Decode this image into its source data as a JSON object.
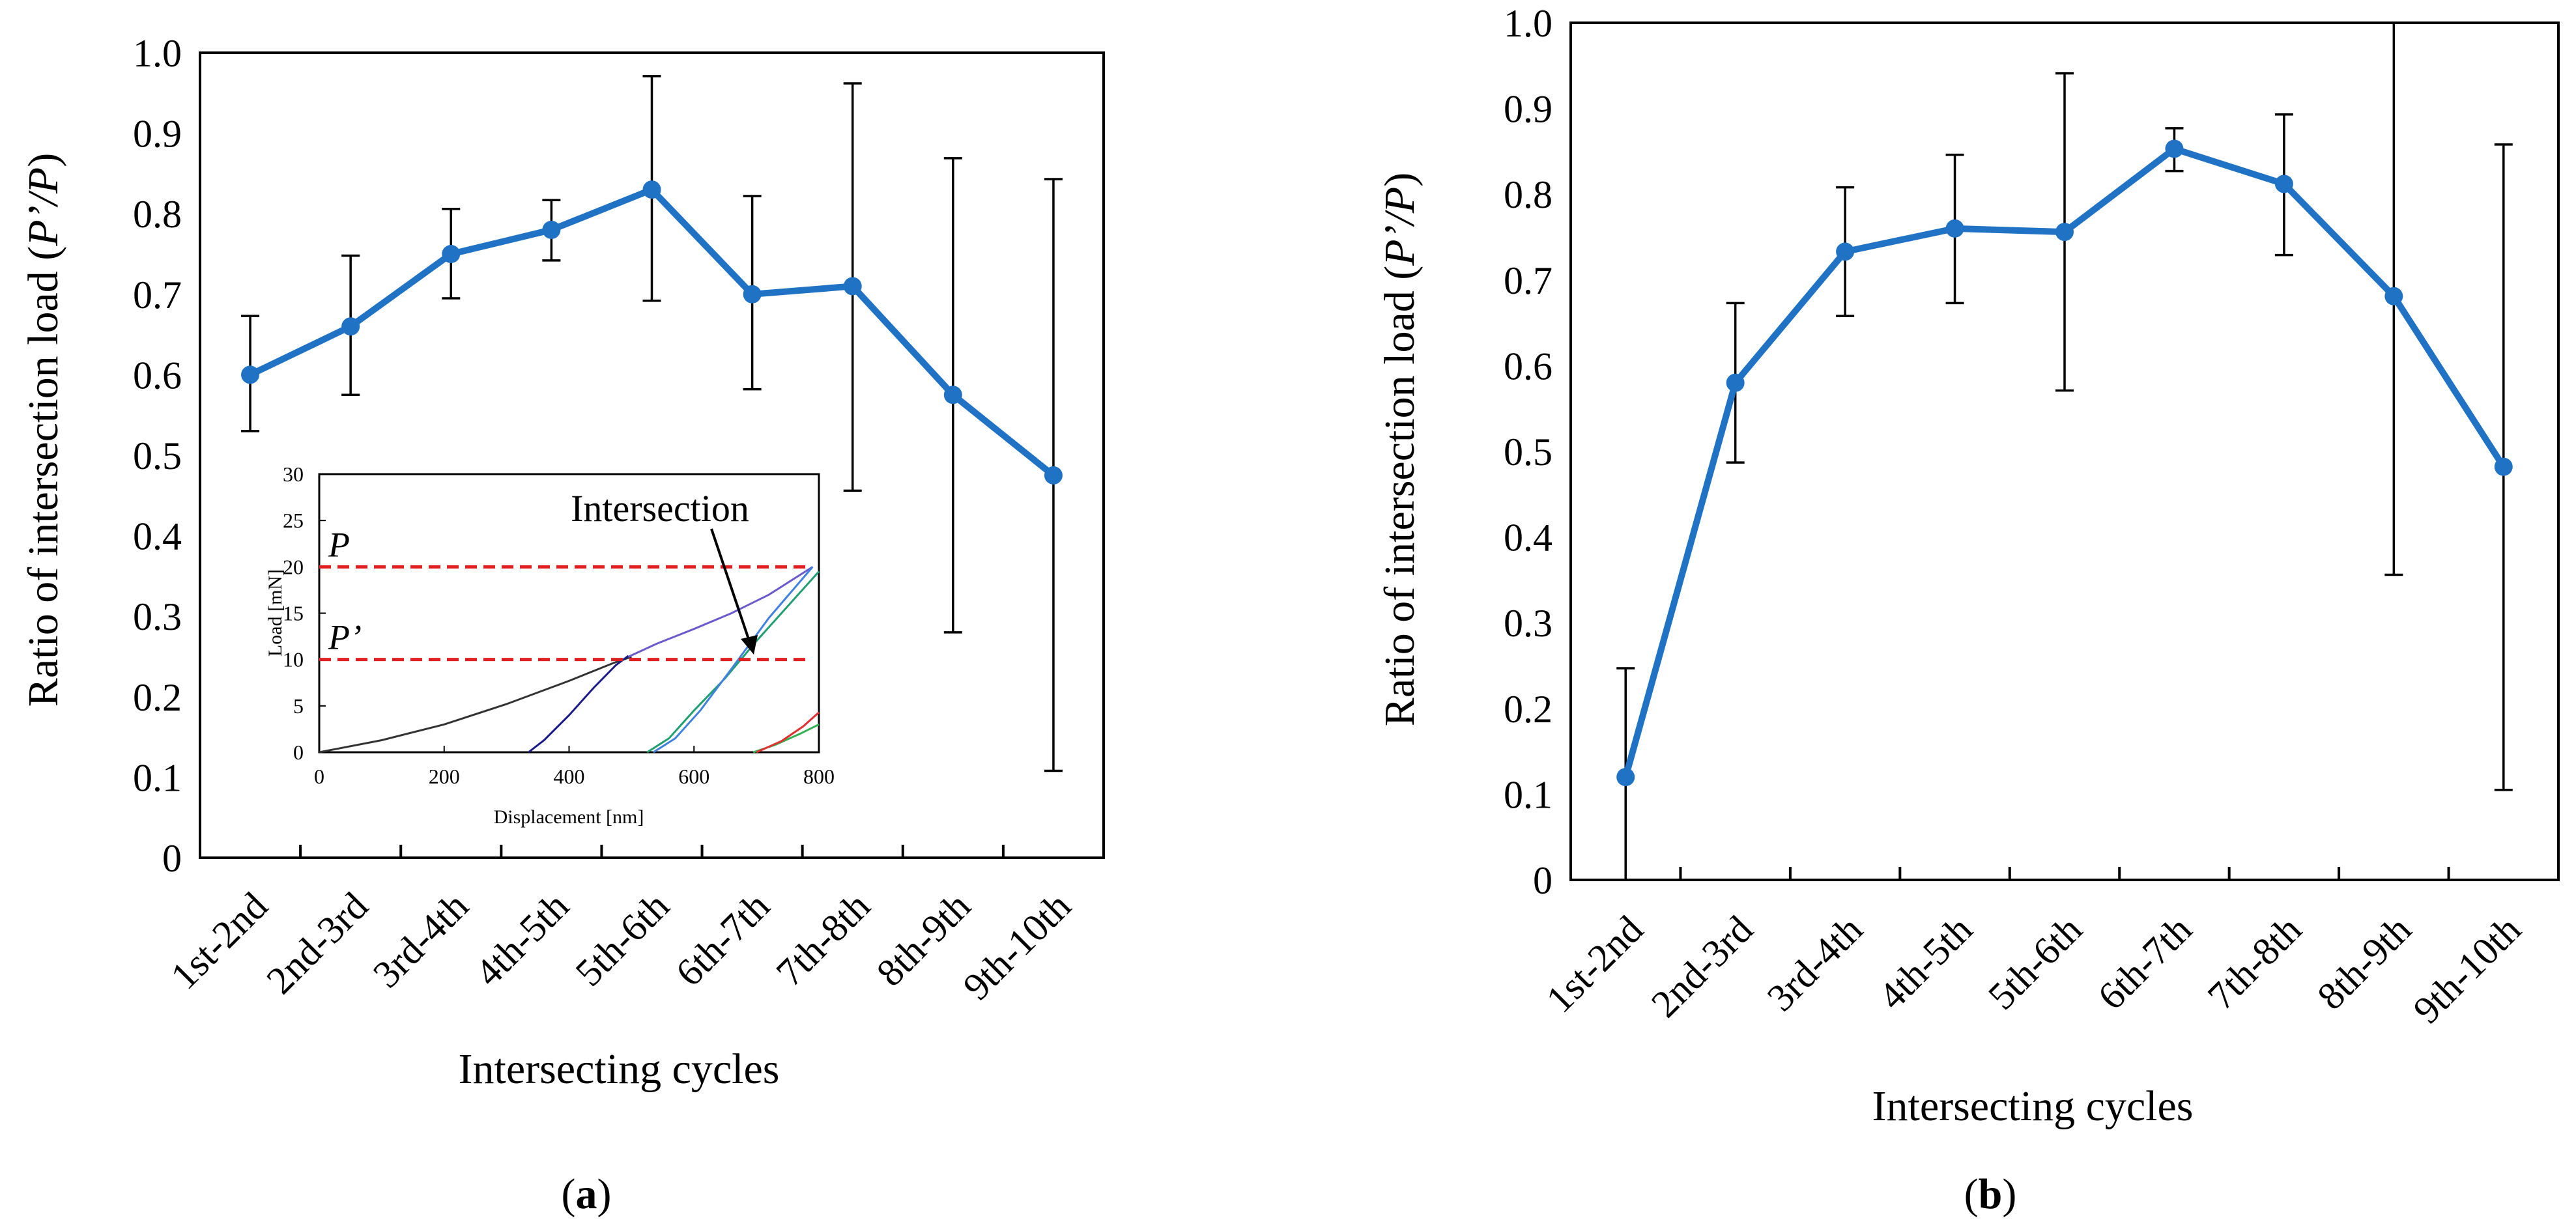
{
  "chart_data": [
    {
      "id": "a",
      "type": "line",
      "panel_label": {
        "open": "(",
        "letter": "a",
        "close": ")"
      },
      "categories": [
        "1st-2nd",
        "2nd-3rd",
        "3rd-4th",
        "4th-5th",
        "5th-6th",
        "6th-7th",
        "7th-8th",
        "8th-9th",
        "9th-10th"
      ],
      "values": [
        0.6,
        0.66,
        0.75,
        0.78,
        0.83,
        0.7,
        0.71,
        0.575,
        0.475
      ],
      "error_low": [
        0.53,
        0.575,
        0.695,
        0.742,
        0.692,
        0.582,
        0.456,
        0.28,
        0.108
      ],
      "error_high": [
        0.673,
        0.748,
        0.806,
        0.817,
        0.971,
        0.822,
        0.962,
        0.869,
        0.843
      ],
      "ylim": [
        0,
        1.0
      ],
      "yticks": [
        "0",
        "0.1",
        "0.2",
        "0.3",
        "0.4",
        "0.5",
        "0.6",
        "0.7",
        "0.8",
        "0.9",
        "1.0"
      ],
      "ylabel": {
        "pre": "Ratio of intersection load (",
        "italic": "P’/P",
        "post": ")"
      },
      "xlabel": "Intersecting cycles",
      "series_color": "#1f72c4",
      "inset": {
        "type": "line",
        "xlabel": "Displacement [nm]",
        "ylabel": "Load [mN]",
        "xlim": [
          0,
          800
        ],
        "ylim": [
          0,
          30
        ],
        "xticks": [
          "0",
          "200",
          "400",
          "600",
          "800"
        ],
        "yticks": [
          "0",
          "5",
          "10",
          "15",
          "20",
          "25",
          "30"
        ],
        "reference_lines": [
          {
            "label": "P",
            "value": 20,
            "color": "#e02020"
          },
          {
            "label": "P’",
            "value": 10,
            "color": "#e02020"
          }
        ],
        "annotation": "Intersection",
        "curves": [
          {
            "name": "loading",
            "color": "#333333",
            "points": [
              [
                0,
                0
              ],
              [
                100,
                1.3
              ],
              [
                200,
                3.0
              ],
              [
                300,
                5.2
              ],
              [
                400,
                7.7
              ],
              [
                470,
                9.6
              ],
              [
                500,
                10.3
              ]
            ]
          },
          {
            "name": "reload-2",
            "color": "#1a1a8a",
            "points": [
              [
                335,
                0
              ],
              [
                360,
                1.3
              ],
              [
                400,
                4.0
              ],
              [
                440,
                7.0
              ],
              [
                475,
                9.4
              ],
              [
                495,
                10.4
              ]
            ]
          },
          {
            "name": "reload-3",
            "color": "#6a5acd",
            "points": [
              [
                495,
                10.3
              ],
              [
                540,
                11.7
              ],
              [
                600,
                13.3
              ],
              [
                660,
                15.0
              ],
              [
                720,
                17.0
              ],
              [
                790,
                20
              ]
            ]
          },
          {
            "name": "reload-4",
            "color": "#20a070",
            "points": [
              [
                525,
                0
              ],
              [
                560,
                1.5
              ],
              [
                600,
                4.5
              ],
              [
                650,
                8.0
              ],
              [
                700,
                12.0
              ],
              [
                760,
                16.5
              ],
              [
                800,
                19.5
              ]
            ]
          },
          {
            "name": "reload-5",
            "color": "#4080e0",
            "points": [
              [
                535,
                0
              ],
              [
                570,
                1.5
              ],
              [
                610,
                4.5
              ],
              [
                660,
                9.0
              ],
              [
                720,
                14.5
              ],
              [
                790,
                20
              ]
            ]
          },
          {
            "name": "reload-6",
            "color": "#30b050",
            "points": [
              [
                695,
                0
              ],
              [
                730,
                0.8
              ],
              [
                770,
                2.0
              ],
              [
                800,
                3.0
              ]
            ]
          },
          {
            "name": "reload-7",
            "color": "#e03030",
            "points": [
              [
                700,
                0
              ],
              [
                740,
                1.2
              ],
              [
                775,
                2.8
              ],
              [
                800,
                4.3
              ]
            ]
          }
        ]
      }
    },
    {
      "id": "b",
      "type": "line",
      "panel_label": {
        "open": "(",
        "letter": "b",
        "close": ")"
      },
      "categories": [
        "1st-2nd",
        "2nd-3rd",
        "3rd-4th",
        "4th-5th",
        "5th-6th",
        "6th-7th",
        "7th-8th",
        "8th-9th",
        "9th-10th"
      ],
      "values": [
        0.12,
        0.58,
        0.733,
        0.76,
        0.756,
        0.853,
        0.812,
        0.681,
        0.482
      ],
      "error_low": [
        0.0,
        0.487,
        0.658,
        0.673,
        0.571,
        0.827,
        0.729,
        0.356,
        0.105
      ],
      "error_high": [
        0.247,
        0.673,
        0.808,
        0.846,
        0.941,
        0.877,
        0.893,
        1.0,
        0.858
      ],
      "ylim": [
        0,
        1.0
      ],
      "yticks": [
        "0",
        "0.1",
        "0.2",
        "0.3",
        "0.4",
        "0.5",
        "0.6",
        "0.7",
        "0.8",
        "0.9",
        "1.0"
      ],
      "ylabel": {
        "pre": "Ratio of intersection load (",
        "italic": "P’/P",
        "post": ")"
      },
      "xlabel": "Intersecting cycles",
      "series_color": "#1f72c4"
    }
  ]
}
